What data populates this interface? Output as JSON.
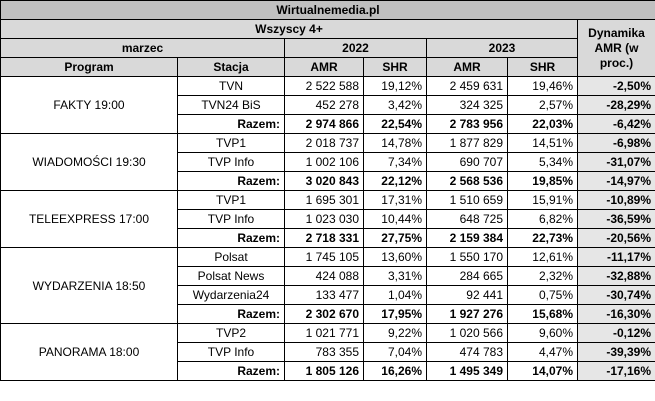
{
  "title": "Wirtualnemedia.pl",
  "audience": "Wszyscy 4+",
  "month": "marzec",
  "year_a": "2022",
  "year_b": "2023",
  "dynamics_header": "Dynamika AMR (w proc.)",
  "col_program": "Program",
  "col_station": "Stacja",
  "col_amr": "AMR",
  "col_shr": "SHR",
  "programs": [
    {
      "name": "FAKTY 19:00",
      "rows": [
        {
          "station": "TVN",
          "amr22": "2 522 588",
          "shr22": "19,12%",
          "amr23": "2 459 631",
          "shr23": "19,46%",
          "dyn": "-2,50%"
        },
        {
          "station": "TVN24 BiS",
          "amr22": "452 278",
          "shr22": "3,42%",
          "amr23": "324 325",
          "shr23": "2,57%",
          "dyn": "-28,29%"
        },
        {
          "station": "Razem:",
          "amr22": "2 974 866",
          "shr22": "22,54%",
          "amr23": "2 783 956",
          "shr23": "22,03%",
          "dyn": "-6,42%",
          "total": true
        }
      ]
    },
    {
      "name": "WIADOMOŚCI 19:30",
      "rows": [
        {
          "station": "TVP1",
          "amr22": "2 018 737",
          "shr22": "14,78%",
          "amr23": "1 877 829",
          "shr23": "14,51%",
          "dyn": "-6,98%"
        },
        {
          "station": "TVP Info",
          "amr22": "1 002 106",
          "shr22": "7,34%",
          "amr23": "690 707",
          "shr23": "5,34%",
          "dyn": "-31,07%"
        },
        {
          "station": "Razem:",
          "amr22": "3 020 843",
          "shr22": "22,12%",
          "amr23": "2 568 536",
          "shr23": "19,85%",
          "dyn": "-14,97%",
          "total": true
        }
      ]
    },
    {
      "name": "TELEEXPRESS 17:00",
      "rows": [
        {
          "station": "TVP1",
          "amr22": "1 695 301",
          "shr22": "17,31%",
          "amr23": "1 510 659",
          "shr23": "15,91%",
          "dyn": "-10,89%"
        },
        {
          "station": "TVP Info",
          "amr22": "1 023 030",
          "shr22": "10,44%",
          "amr23": "648 725",
          "shr23": "6,82%",
          "dyn": "-36,59%"
        },
        {
          "station": "Razem:",
          "amr22": "2 718 331",
          "shr22": "27,75%",
          "amr23": "2 159 384",
          "shr23": "22,73%",
          "dyn": "-20,56%",
          "total": true
        }
      ]
    },
    {
      "name": "WYDARZENIA 18:50",
      "rows": [
        {
          "station": "Polsat",
          "amr22": "1 745 105",
          "shr22": "13,60%",
          "amr23": "1 550 170",
          "shr23": "12,61%",
          "dyn": "-11,17%"
        },
        {
          "station": "Polsat News",
          "amr22": "424 088",
          "shr22": "3,31%",
          "amr23": "284 665",
          "shr23": "2,32%",
          "dyn": "-32,88%"
        },
        {
          "station": "Wydarzenia24",
          "amr22": "133 477",
          "shr22": "1,04%",
          "amr23": "92 441",
          "shr23": "0,75%",
          "dyn": "-30,74%"
        },
        {
          "station": "Razem:",
          "amr22": "2 302 670",
          "shr22": "17,95%",
          "amr23": "1 927 276",
          "shr23": "15,68%",
          "dyn": "-16,30%",
          "total": true
        }
      ]
    },
    {
      "name": "PANORAMA 18:00",
      "rows": [
        {
          "station": "TVP2",
          "amr22": "1 021 771",
          "shr22": "9,22%",
          "amr23": "1 020 566",
          "shr23": "9,60%",
          "dyn": "-0,12%"
        },
        {
          "station": "TVP Info",
          "amr22": "783 355",
          "shr22": "7,04%",
          "amr23": "474 783",
          "shr23": "4,47%",
          "dyn": "-39,39%"
        },
        {
          "station": "Razem:",
          "amr22": "1 805 126",
          "shr22": "16,26%",
          "amr23": "1 495 349",
          "shr23": "14,07%",
          "dyn": "-17,16%",
          "total": true
        }
      ]
    }
  ]
}
